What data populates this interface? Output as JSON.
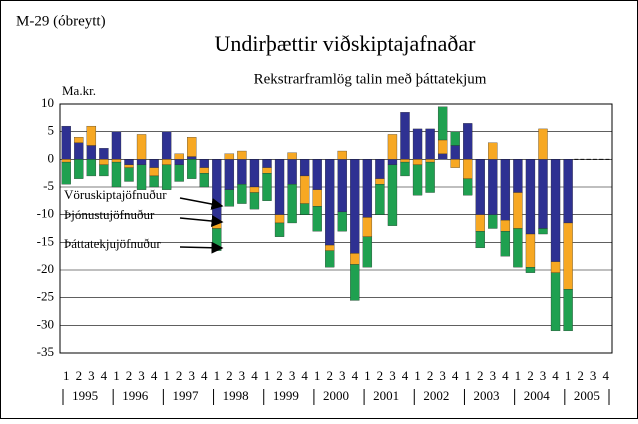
{
  "chart_data": {
    "type": "stacked_bar",
    "title": "Undirþættir viðskiptajafnaðar",
    "chart_id": "M-29 (óbreytt)",
    "subtitle": "Rekstrarframlög talin með þáttatekjum",
    "y_label": "Ma.kr.",
    "categories": [
      "1",
      "2",
      "3",
      "4",
      "1",
      "2",
      "3",
      "4",
      "1",
      "2",
      "3",
      "4",
      "1",
      "2",
      "3",
      "4",
      "1",
      "2",
      "3",
      "4",
      "1",
      "2",
      "3",
      "4",
      "1",
      "2",
      "3",
      "4",
      "1",
      "2",
      "3",
      "4",
      "1",
      "2",
      "3",
      "4",
      "1",
      "2",
      "3",
      "4",
      "1",
      "2",
      "3",
      "4"
    ],
    "years": [
      "1995",
      "1996",
      "1997",
      "1998",
      "1999",
      "2000",
      "2001",
      "2002",
      "2003",
      "2004",
      "2005"
    ],
    "series": [
      {
        "name": "Vöruskiptajöfnuður",
        "color": "#2e3192",
        "values": [
          6,
          3,
          2.5,
          2,
          5,
          -1,
          -1,
          -1.5,
          5,
          -1,
          0.5,
          -1.5,
          -11,
          -5.5,
          -4.5,
          -5,
          -1.5,
          -10,
          -4.5,
          -3,
          -5.5,
          -15.5,
          -9.5,
          -17,
          -10.5,
          -3.5,
          -1,
          8.5,
          5.5,
          5.5,
          1,
          2.5,
          6.5,
          -10,
          -10,
          -11,
          -6,
          -13.5,
          -12.5,
          -18.5,
          -11.5,
          null,
          null,
          null
        ]
      },
      {
        "name": "Þjónustujöfnuður",
        "color": "#f7a823",
        "values": [
          -0.5,
          1,
          3.5,
          -1,
          -0.5,
          -0.5,
          4.5,
          -1.5,
          -1,
          1,
          3.5,
          -1,
          -1.5,
          1,
          1.5,
          -1,
          -1,
          -1.5,
          1.2,
          -5,
          -3,
          -1,
          1.5,
          -2,
          -3.5,
          -1,
          4.5,
          -0.5,
          -1,
          -0.5,
          2.5,
          -1.5,
          -3.5,
          -3,
          3,
          -2,
          -6.5,
          -6,
          5.5,
          -2,
          -12,
          null,
          null,
          null
        ]
      },
      {
        "name": "Þáttatekjujöfnuður",
        "color": "#1fa050",
        "values": [
          -4,
          -3.5,
          -3,
          -2,
          -4.5,
          -2.5,
          -4.5,
          -2,
          -4.5,
          -3,
          -3.5,
          -2.5,
          -4,
          -3,
          -3.5,
          -3,
          -5,
          -2.5,
          -7,
          -2,
          -4.5,
          -3,
          -3.5,
          -6.5,
          -5.5,
          -5.5,
          -11,
          -2.5,
          -5.5,
          -5.5,
          6,
          2.5,
          -3,
          -3,
          -2.5,
          -4.5,
          -7,
          -1,
          -1,
          -10.5,
          -7.5,
          null,
          null,
          null
        ]
      }
    ],
    "ylim": [
      -35,
      10
    ],
    "yticks": [
      -35,
      -30,
      -25,
      -20,
      -15,
      -10,
      -5,
      0,
      5,
      10
    ],
    "grid": true
  }
}
